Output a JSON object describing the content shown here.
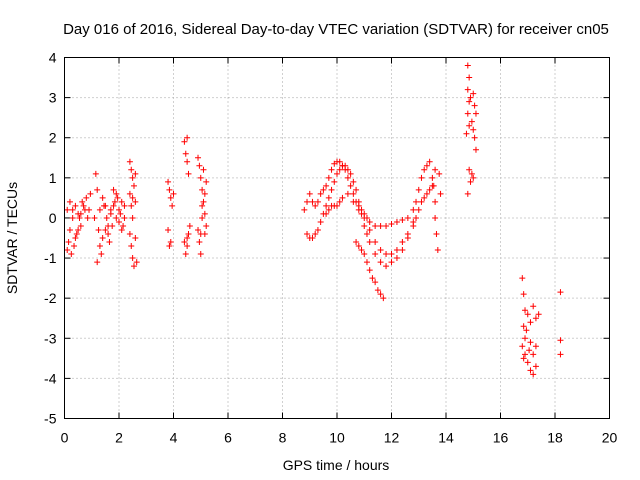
{
  "chart_data": {
    "type": "scatter",
    "title": "Day 016 of 2016, Sidereal Day-to-day VTEC variation (SDTVAR) for receiver cn05",
    "xlabel": "GPS time / hours",
    "ylabel": "SDTVAR / TECUs",
    "xlim": [
      0,
      20
    ],
    "ylim": [
      -5,
      4
    ],
    "xticks": [
      0,
      2,
      4,
      6,
      8,
      10,
      12,
      14,
      16,
      18,
      20
    ],
    "yticks": [
      -5,
      -4,
      -3,
      -2,
      -1,
      0,
      1,
      2,
      3,
      4
    ],
    "grid": true,
    "marker": "plus",
    "color": "#ff0000",
    "series": [
      {
        "name": "SDTVAR",
        "points": [
          [
            0.1,
            -0.8
          ],
          [
            0.2,
            -0.3
          ],
          [
            0.3,
            0.2
          ],
          [
            0.4,
            0.3
          ],
          [
            0.5,
            0.1
          ],
          [
            0.6,
            -0.2
          ],
          [
            0.7,
            0.3
          ],
          [
            0.8,
            0.5
          ],
          [
            0.9,
            0.2
          ],
          [
            0.1,
            0.2
          ],
          [
            0.2,
            0.4
          ],
          [
            0.3,
            0.0
          ],
          [
            0.4,
            -0.5
          ],
          [
            0.5,
            -0.3
          ],
          [
            0.6,
            0.1
          ],
          [
            0.15,
            -0.6
          ],
          [
            0.25,
            -0.9
          ],
          [
            0.35,
            -0.7
          ],
          [
            0.45,
            -0.4
          ],
          [
            0.55,
            0.0
          ],
          [
            0.65,
            0.4
          ],
          [
            0.75,
            0.2
          ],
          [
            0.85,
            0.0
          ],
          [
            0.95,
            0.6
          ],
          [
            1.1,
            0.0
          ],
          [
            1.15,
            1.1
          ],
          [
            1.2,
            0.7
          ],
          [
            1.25,
            -0.3
          ],
          [
            1.3,
            0.2
          ],
          [
            1.4,
            0.5
          ],
          [
            1.5,
            0.3
          ],
          [
            1.6,
            -0.2
          ],
          [
            1.7,
            0.1
          ],
          [
            1.8,
            0.7
          ],
          [
            1.9,
            0.6
          ],
          [
            2.0,
            0.2
          ],
          [
            2.1,
            -0.3
          ],
          [
            2.2,
            0.3
          ],
          [
            1.2,
            -1.1
          ],
          [
            1.3,
            -0.7
          ],
          [
            1.4,
            -0.5
          ],
          [
            1.5,
            -0.3
          ],
          [
            1.6,
            -0.4
          ],
          [
            1.7,
            0.2
          ],
          [
            1.8,
            0.3
          ],
          [
            1.9,
            0.0
          ],
          [
            2.0,
            -0.1
          ],
          [
            2.1,
            0.4
          ],
          [
            2.2,
            0.0
          ],
          [
            1.35,
            -0.9
          ],
          [
            1.45,
            0.3
          ],
          [
            1.55,
            0.0
          ],
          [
            1.65,
            -0.6
          ],
          [
            1.75,
            -0.2
          ],
          [
            1.85,
            0.4
          ],
          [
            1.95,
            0.5
          ],
          [
            2.05,
            0.1
          ],
          [
            2.15,
            -0.2
          ],
          [
            2.4,
            1.4
          ],
          [
            2.45,
            1.2
          ],
          [
            2.5,
            1.0
          ],
          [
            2.55,
            0.8
          ],
          [
            2.4,
            0.6
          ],
          [
            2.45,
            0.3
          ],
          [
            2.5,
            0.0
          ],
          [
            2.4,
            -0.4
          ],
          [
            2.45,
            -0.7
          ],
          [
            2.5,
            -1.0
          ],
          [
            2.55,
            -1.2
          ],
          [
            2.6,
            1.1
          ],
          [
            2.6,
            0.4
          ],
          [
            2.6,
            -0.5
          ],
          [
            2.65,
            -1.1
          ],
          [
            2.5,
            0.5
          ],
          [
            3.8,
            0.9
          ],
          [
            3.85,
            0.7
          ],
          [
            3.9,
            0.5
          ],
          [
            3.95,
            0.3
          ],
          [
            3.8,
            -0.3
          ],
          [
            3.85,
            -0.7
          ],
          [
            3.9,
            -0.6
          ],
          [
            4.0,
            0.6
          ],
          [
            4.4,
            1.9
          ],
          [
            4.45,
            1.6
          ],
          [
            4.5,
            1.4
          ],
          [
            4.55,
            1.1
          ],
          [
            4.5,
            2.0
          ],
          [
            4.4,
            -0.6
          ],
          [
            4.45,
            -0.9
          ],
          [
            4.5,
            -0.7
          ],
          [
            4.55,
            -0.4
          ],
          [
            4.6,
            -0.2
          ],
          [
            4.5,
            -0.5
          ],
          [
            4.9,
            1.5
          ],
          [
            4.95,
            1.3
          ],
          [
            5.0,
            1.0
          ],
          [
            5.05,
            0.7
          ],
          [
            5.1,
            0.4
          ],
          [
            5.15,
            0.1
          ],
          [
            5.2,
            -0.2
          ],
          [
            5.0,
            -0.4
          ],
          [
            4.95,
            -0.6
          ],
          [
            4.9,
            -0.3
          ],
          [
            5.05,
            0.0
          ],
          [
            5.15,
            0.6
          ],
          [
            5.2,
            0.9
          ],
          [
            5.1,
            1.2
          ],
          [
            5.0,
            -0.9
          ],
          [
            5.05,
            0.3
          ],
          [
            5.15,
            -0.4
          ],
          [
            8.8,
            0.2
          ],
          [
            8.9,
            0.4
          ],
          [
            9.0,
            0.6
          ],
          [
            9.1,
            0.4
          ],
          [
            9.2,
            0.3
          ],
          [
            9.3,
            0.4
          ],
          [
            9.4,
            0.6
          ],
          [
            9.5,
            0.7
          ],
          [
            9.6,
            0.8
          ],
          [
            9.7,
            1.0
          ],
          [
            9.8,
            1.2
          ],
          [
            9.9,
            1.35
          ],
          [
            10.0,
            1.4
          ],
          [
            10.1,
            1.4
          ],
          [
            10.2,
            1.3
          ],
          [
            10.3,
            1.2
          ],
          [
            10.4,
            1.0
          ],
          [
            10.5,
            0.8
          ],
          [
            10.6,
            0.6
          ],
          [
            10.7,
            0.4
          ],
          [
            10.8,
            0.3
          ],
          [
            10.9,
            0.2
          ],
          [
            11.0,
            0.1
          ],
          [
            11.1,
            0.0
          ],
          [
            11.2,
            -0.1
          ],
          [
            11.4,
            -0.2
          ],
          [
            11.6,
            -0.2
          ],
          [
            11.8,
            -0.2
          ],
          [
            12.0,
            -0.15
          ],
          [
            12.2,
            -0.1
          ],
          [
            12.4,
            -0.05
          ],
          [
            12.6,
            0.0
          ],
          [
            12.8,
            0.2
          ],
          [
            12.9,
            0.4
          ],
          [
            13.0,
            0.7
          ],
          [
            13.1,
            1.0
          ],
          [
            13.2,
            1.2
          ],
          [
            13.3,
            1.3
          ],
          [
            13.4,
            1.4
          ],
          [
            8.9,
            -0.4
          ],
          [
            9.0,
            -0.5
          ],
          [
            9.1,
            -0.5
          ],
          [
            9.2,
            -0.4
          ],
          [
            9.3,
            -0.3
          ],
          [
            9.4,
            -0.1
          ],
          [
            9.5,
            0.1
          ],
          [
            9.6,
            0.3
          ],
          [
            9.7,
            0.5
          ],
          [
            9.8,
            0.7
          ],
          [
            9.9,
            0.9
          ],
          [
            10.0,
            1.1
          ],
          [
            10.1,
            1.2
          ],
          [
            10.2,
            1.3
          ],
          [
            10.3,
            1.3
          ],
          [
            10.4,
            1.2
          ],
          [
            10.5,
            1.1
          ],
          [
            10.6,
            0.9
          ],
          [
            10.7,
            0.7
          ],
          [
            10.8,
            0.4
          ],
          [
            10.9,
            0.1
          ],
          [
            11.0,
            -0.2
          ],
          [
            11.1,
            -0.4
          ],
          [
            11.2,
            -0.6
          ],
          [
            11.4,
            -0.9
          ],
          [
            11.6,
            -1.1
          ],
          [
            11.8,
            -1.2
          ],
          [
            12.0,
            -1.1
          ],
          [
            12.2,
            -1.0
          ],
          [
            12.4,
            -0.8
          ],
          [
            12.6,
            -0.5
          ],
          [
            12.8,
            -0.2
          ],
          [
            12.9,
            0.0
          ],
          [
            13.0,
            0.2
          ],
          [
            13.1,
            0.4
          ],
          [
            13.2,
            0.5
          ],
          [
            13.3,
            0.6
          ],
          [
            13.4,
            0.7
          ],
          [
            13.5,
            0.8
          ],
          [
            10.7,
            -0.6
          ],
          [
            10.8,
            -0.7
          ],
          [
            10.9,
            -0.8
          ],
          [
            11.0,
            -0.9
          ],
          [
            11.1,
            -1.1
          ],
          [
            11.2,
            -1.3
          ],
          [
            11.3,
            -1.5
          ],
          [
            11.4,
            -1.6
          ],
          [
            11.5,
            -1.8
          ],
          [
            11.6,
            -1.9
          ],
          [
            11.7,
            -2.0
          ],
          [
            9.6,
            0.1
          ],
          [
            9.7,
            0.2
          ],
          [
            9.8,
            0.3
          ],
          [
            9.9,
            0.3
          ],
          [
            10.0,
            0.3
          ],
          [
            10.1,
            0.4
          ],
          [
            10.2,
            0.5
          ],
          [
            10.4,
            0.6
          ],
          [
            10.6,
            0.4
          ],
          [
            10.8,
            0.2
          ],
          [
            11.0,
            0.0
          ],
          [
            11.2,
            -0.3
          ],
          [
            11.4,
            -0.6
          ],
          [
            11.6,
            -0.8
          ],
          [
            11.8,
            -0.9
          ],
          [
            12.0,
            -0.9
          ],
          [
            12.2,
            -0.8
          ],
          [
            12.4,
            -0.6
          ],
          [
            12.6,
            -0.4
          ],
          [
            12.8,
            -0.1
          ],
          [
            13.5,
            1.0
          ],
          [
            13.55,
            0.8
          ],
          [
            13.6,
            0.4
          ],
          [
            13.6,
            0.0
          ],
          [
            13.65,
            -0.4
          ],
          [
            13.7,
            -0.8
          ],
          [
            13.75,
            1.1
          ],
          [
            13.8,
            0.6
          ],
          [
            13.6,
            1.2
          ],
          [
            14.8,
            3.8
          ],
          [
            14.85,
            3.5
          ],
          [
            14.8,
            3.2
          ],
          [
            14.85,
            2.9
          ],
          [
            14.8,
            2.6
          ],
          [
            14.85,
            2.3
          ],
          [
            14.75,
            2.1
          ],
          [
            14.9,
            3.0
          ],
          [
            14.95,
            2.4
          ],
          [
            15.0,
            2.2
          ],
          [
            15.05,
            2.0
          ],
          [
            15.1,
            1.7
          ],
          [
            15.0,
            1.0
          ],
          [
            14.9,
            0.9
          ],
          [
            14.8,
            0.6
          ],
          [
            14.85,
            1.2
          ],
          [
            15.0,
            3.1
          ],
          [
            15.05,
            2.8
          ],
          [
            15.1,
            2.6
          ],
          [
            14.95,
            1.1
          ],
          [
            16.8,
            -1.5
          ],
          [
            16.85,
            -1.9
          ],
          [
            16.9,
            -2.3
          ],
          [
            16.85,
            -2.7
          ],
          [
            16.9,
            -3.0
          ],
          [
            16.8,
            -3.2
          ],
          [
            16.85,
            -3.5
          ],
          [
            16.9,
            -3.4
          ],
          [
            17.0,
            -3.6
          ],
          [
            17.1,
            -3.8
          ],
          [
            17.2,
            -3.9
          ],
          [
            17.3,
            -3.7
          ],
          [
            17.0,
            -2.4
          ],
          [
            17.1,
            -2.6
          ],
          [
            17.2,
            -2.2
          ],
          [
            17.3,
            -2.5
          ],
          [
            17.4,
            -2.4
          ],
          [
            17.1,
            -3.1
          ],
          [
            17.2,
            -3.4
          ],
          [
            17.3,
            -3.2
          ],
          [
            16.95,
            -2.8
          ],
          [
            17.05,
            -3.3
          ],
          [
            18.2,
            -1.85
          ],
          [
            18.2,
            -3.05
          ],
          [
            18.2,
            -3.4
          ]
        ]
      }
    ]
  }
}
